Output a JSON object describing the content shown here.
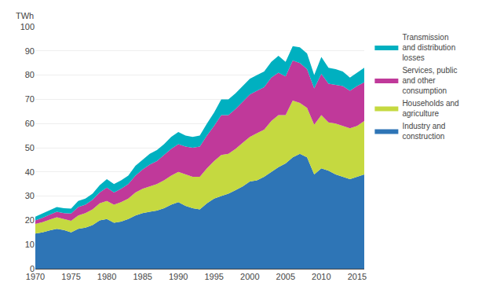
{
  "chart_data": {
    "type": "area",
    "stacked": true,
    "ylabel": "TWh",
    "x": [
      1970,
      1971,
      1972,
      1973,
      1974,
      1975,
      1976,
      1977,
      1978,
      1979,
      1980,
      1981,
      1982,
      1983,
      1984,
      1985,
      1986,
      1987,
      1988,
      1989,
      1990,
      1991,
      1992,
      1993,
      1994,
      1995,
      1996,
      1997,
      1998,
      1999,
      2000,
      2001,
      2002,
      2003,
      2004,
      2005,
      2006,
      2007,
      2008,
      2009,
      2010,
      2011,
      2012,
      2013,
      2014,
      2015,
      2016
    ],
    "series": [
      {
        "name": "Industry and\nconstruction",
        "color": "#2E75B6",
        "values": [
          14.5,
          15.0,
          15.8,
          16.5,
          16.0,
          15.0,
          16.5,
          17.0,
          18.0,
          20.0,
          20.5,
          19.0,
          19.5,
          20.5,
          22.0,
          23.0,
          23.5,
          24.0,
          25.0,
          26.5,
          27.5,
          26.0,
          25.0,
          24.5,
          27.0,
          29.0,
          30.0,
          31.0,
          32.5,
          34.0,
          36.0,
          36.5,
          38.0,
          40.0,
          42.0,
          43.5,
          46.0,
          47.5,
          46.0,
          39.0,
          41.5,
          40.5,
          39.0,
          38.0,
          37.0,
          38.0,
          39.0
        ]
      },
      {
        "name": "Households and\nagriculture",
        "color": "#C5D940",
        "values": [
          4.0,
          4.2,
          4.5,
          4.8,
          4.5,
          4.8,
          5.5,
          6.0,
          6.5,
          7.0,
          7.5,
          7.5,
          8.0,
          8.5,
          9.5,
          10.0,
          10.5,
          11.0,
          11.5,
          12.0,
          12.5,
          13.0,
          13.0,
          13.5,
          14.5,
          15.5,
          17.0,
          16.5,
          17.0,
          18.0,
          18.5,
          19.5,
          19.5,
          21.0,
          21.5,
          20.0,
          23.5,
          21.0,
          20.5,
          20.5,
          22.0,
          20.0,
          21.0,
          21.0,
          21.0,
          21.0,
          22.0
        ]
      },
      {
        "name": "Services, public\nand other\nconsumption",
        "color": "#C0399A",
        "values": [
          1.5,
          1.8,
          2.0,
          2.2,
          2.5,
          3.0,
          3.5,
          3.5,
          4.0,
          4.5,
          5.5,
          5.0,
          5.5,
          6.0,
          7.0,
          8.0,
          9.0,
          9.5,
          10.5,
          11.0,
          11.5,
          11.5,
          12.0,
          12.5,
          13.5,
          14.5,
          16.5,
          16.0,
          16.5,
          17.0,
          17.5,
          17.5,
          17.5,
          18.0,
          17.5,
          16.0,
          16.5,
          16.5,
          16.0,
          15.0,
          17.0,
          16.0,
          16.0,
          16.5,
          15.5,
          16.5,
          16.0
        ]
      },
      {
        "name": "Transmission\nand distribution\nlosses",
        "color": "#00B0C0",
        "values": [
          1.5,
          1.8,
          1.8,
          2.0,
          2.0,
          2.0,
          2.5,
          2.5,
          2.5,
          3.0,
          3.5,
          3.5,
          3.5,
          3.5,
          4.0,
          4.0,
          4.5,
          4.5,
          4.5,
          5.0,
          5.0,
          4.5,
          4.5,
          4.5,
          5.0,
          5.5,
          6.5,
          6.5,
          6.5,
          6.5,
          6.5,
          6.5,
          6.5,
          6.5,
          7.0,
          6.0,
          6.0,
          6.5,
          6.5,
          5.5,
          7.0,
          6.5,
          6.5,
          6.0,
          5.5,
          5.5,
          6.0
        ]
      }
    ],
    "xlim": [
      1970,
      2016
    ],
    "ylim": [
      0,
      100
    ],
    "xticks": [
      1970,
      1975,
      1980,
      1985,
      1990,
      1995,
      2000,
      2005,
      2010,
      2015
    ],
    "yticks": [
      0,
      10,
      20,
      30,
      40,
      50,
      60,
      70,
      80,
      90,
      100
    ],
    "grid": true,
    "legend": "upper right"
  }
}
